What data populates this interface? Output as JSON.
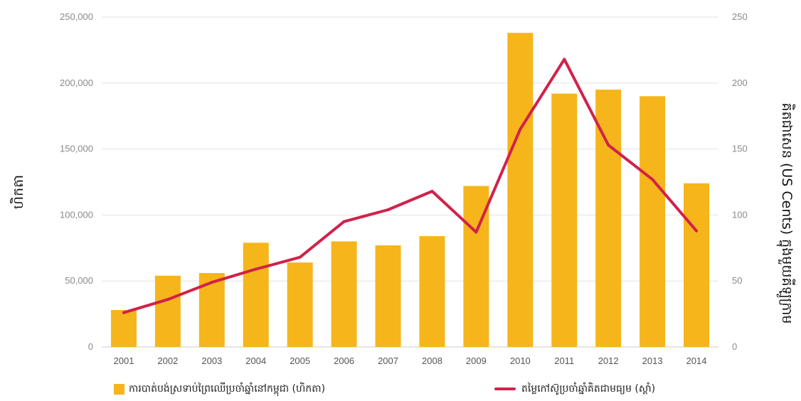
{
  "chart_data": {
    "type": "bar",
    "categories": [
      "2001",
      "2002",
      "2003",
      "2004",
      "2005",
      "2006",
      "2007",
      "2008",
      "2009",
      "2010",
      "2011",
      "2012",
      "2013",
      "2014"
    ],
    "series": [
      {
        "name": "ការបាត់បង់ស្រទាប់ព្រៃឈើប្រចាំឆ្នាំនៅកម្ពុជា (ហិកតា)",
        "type": "bar",
        "axis": "left",
        "color": "#F6B51B",
        "values": [
          28000,
          54000,
          56000,
          79000,
          64000,
          80000,
          77000,
          84000,
          122000,
          238000,
          192000,
          195000,
          190000,
          124000
        ]
      },
      {
        "name": "តម្លៃកៅស៊ូប្រចាំឆ្នាំគិតជាមធ្យម (ស្តាំ)",
        "type": "line",
        "axis": "right",
        "color": "#D1214A",
        "values": [
          26,
          36,
          49,
          59,
          68,
          95,
          104,
          118,
          87,
          165,
          218,
          153,
          127,
          88
        ]
      }
    ],
    "y_left": {
      "label": "ហិកតា",
      "ylim": [
        0,
        250000
      ],
      "ticks": [
        "0",
        "50,000",
        "100,000",
        "150,000",
        "200,000",
        "250,000"
      ]
    },
    "y_right": {
      "label": "គិតជាសេន (US Cents) ក្នុងមួយគីឡូក្រាម",
      "ylim": [
        0,
        250
      ],
      "ticks": [
        "0",
        "50",
        "100",
        "150",
        "200",
        "250"
      ]
    },
    "grid": true,
    "legend_position": "bottom"
  }
}
